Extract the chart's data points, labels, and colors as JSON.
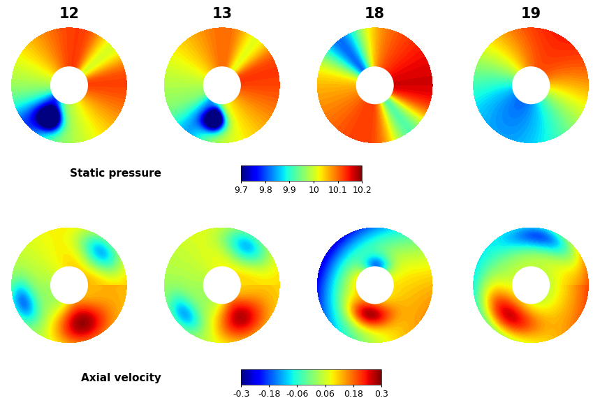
{
  "labels_top": [
    "12",
    "13",
    "18",
    "19"
  ],
  "label_static": "Static pressure",
  "label_axial": "Axial velocity",
  "sp_ticks": [
    9.7,
    9.8,
    9.9,
    10,
    10.1,
    10.2
  ],
  "sp_vmin": 9.7,
  "sp_vmax": 10.2,
  "av_ticks": [
    -0.3,
    -0.18,
    -0.06,
    0.06,
    0.18,
    0.3
  ],
  "av_vmin": -0.3,
  "av_vmax": 0.3,
  "bg_color": "#ffffff",
  "outer_r": 1.0,
  "inner_r": 0.32,
  "n_theta": 400,
  "n_r": 150
}
